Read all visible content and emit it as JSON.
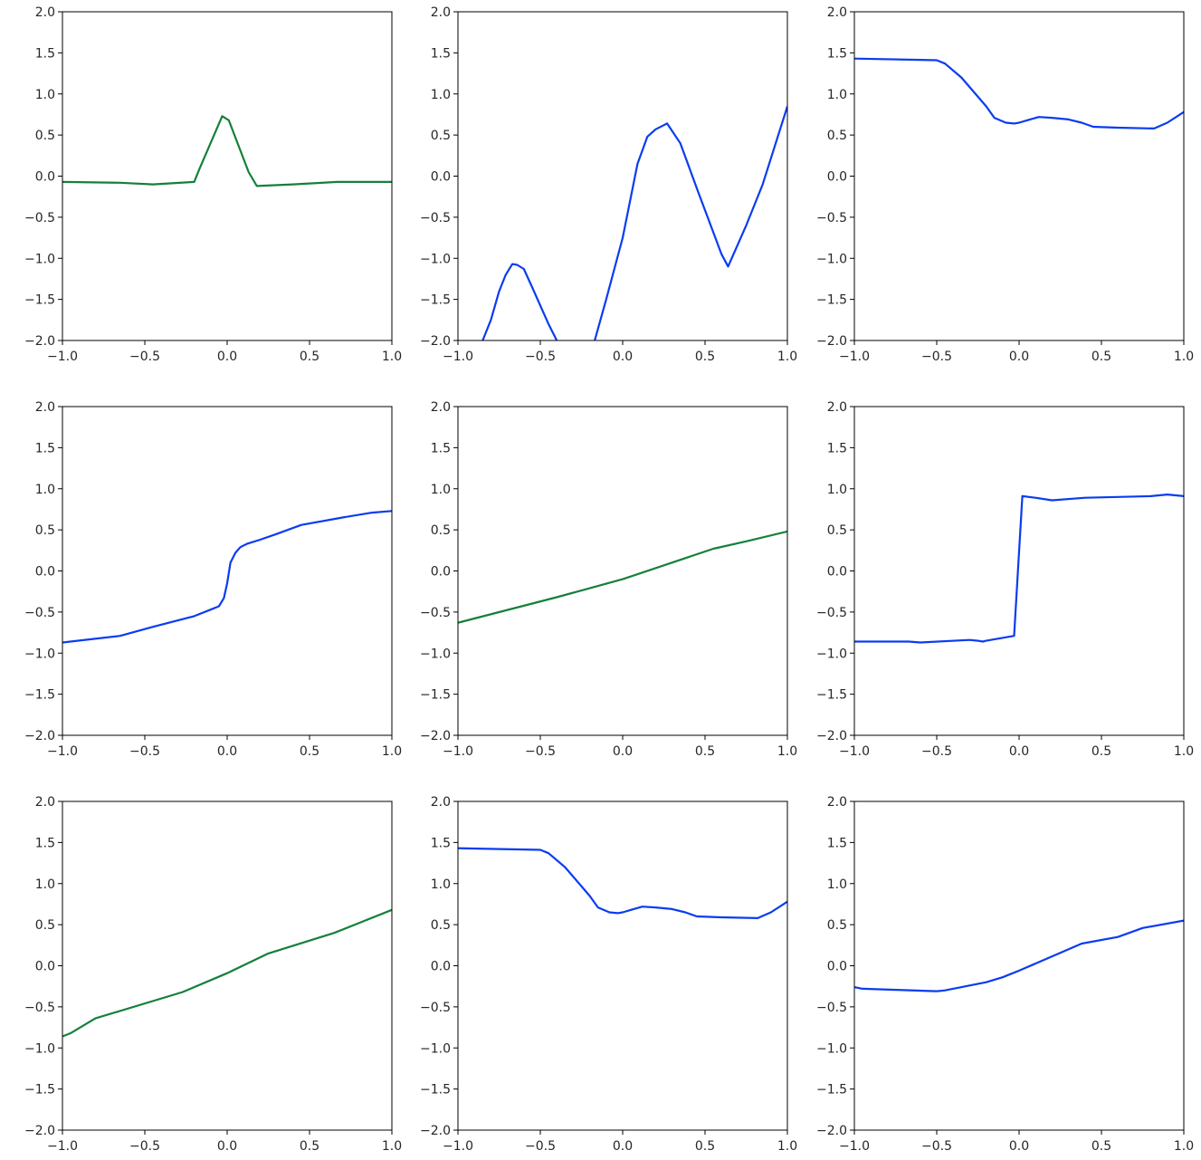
{
  "figure": {
    "grid": {
      "rows": 3,
      "cols": 3
    },
    "series_colors": {
      "green": "#15803a",
      "blue": "#0a3cf0"
    }
  },
  "chart_data": [
    {
      "type": "line",
      "color": "#15803a",
      "xlim": [
        -1.0,
        1.0
      ],
      "ylim": [
        -2.0,
        2.0
      ],
      "grid": false,
      "x_ticks": [
        "−1.0",
        "−0.5",
        "0.0",
        "0.5",
        "1.0"
      ],
      "y_ticks": [
        "2.0",
        "1.5",
        "1.0",
        "0.5",
        "0.0",
        "−0.5",
        "−1.0",
        "−1.5",
        "−2.0"
      ],
      "x": [
        -1.0,
        -0.65,
        -0.45,
        -0.2,
        -0.17,
        -0.03,
        0.01,
        0.13,
        0.18,
        0.4,
        0.67,
        1.0
      ],
      "y": [
        -0.07,
        -0.08,
        -0.1,
        -0.07,
        0.08,
        0.73,
        0.68,
        0.05,
        -0.12,
        -0.1,
        -0.07,
        -0.07
      ]
    },
    {
      "type": "line",
      "color": "#0a3cf0",
      "xlim": [
        -1.0,
        1.0
      ],
      "ylim": [
        -2.0,
        2.0
      ],
      "grid": false,
      "x_ticks": [
        "−1.0",
        "−0.5",
        "0.0",
        "0.5",
        "1.0"
      ],
      "y_ticks": [
        "2.0",
        "1.5",
        "1.0",
        "0.5",
        "0.0",
        "−0.5",
        "−1.0",
        "−1.5",
        "−2.0"
      ],
      "x": [
        -0.85,
        -0.8,
        -0.75,
        -0.71,
        -0.67,
        -0.64,
        -0.6,
        -0.55,
        -0.45,
        -0.4,
        null,
        -0.17,
        -0.1,
        0.0,
        0.09,
        0.15,
        0.2,
        0.25,
        0.27,
        0.35,
        0.46,
        0.6,
        0.64,
        0.75,
        0.85,
        1.0
      ],
      "y": [
        -2.0,
        -1.75,
        -1.4,
        -1.2,
        -1.07,
        -1.08,
        -1.13,
        -1.35,
        -1.8,
        -2.0,
        null,
        -2.0,
        -1.5,
        -0.75,
        0.15,
        0.48,
        0.57,
        0.62,
        0.64,
        0.4,
        -0.2,
        -0.95,
        -1.1,
        -0.6,
        -0.1,
        0.85
      ]
    },
    {
      "type": "line",
      "color": "#0a3cf0",
      "xlim": [
        -1.0,
        1.0
      ],
      "ylim": [
        -2.0,
        2.0
      ],
      "grid": false,
      "x_ticks": [
        "−1.0",
        "−0.5",
        "0.0",
        "0.5",
        "1.0"
      ],
      "y_ticks": [
        "2.0",
        "1.5",
        "1.0",
        "0.5",
        "0.0",
        "−0.5",
        "−1.0",
        "−1.5",
        "−2.0"
      ],
      "x": [
        -1.0,
        -0.5,
        -0.45,
        -0.35,
        -0.2,
        -0.15,
        -0.08,
        -0.03,
        0.0,
        0.05,
        0.12,
        0.2,
        0.3,
        0.38,
        0.45,
        0.6,
        0.82,
        0.9,
        1.0
      ],
      "y": [
        1.43,
        1.41,
        1.37,
        1.2,
        0.85,
        0.71,
        0.65,
        0.64,
        0.65,
        0.68,
        0.72,
        0.71,
        0.69,
        0.65,
        0.6,
        0.59,
        0.58,
        0.65,
        0.78
      ]
    },
    {
      "type": "line",
      "color": "#0a3cf0",
      "xlim": [
        -1.0,
        1.0
      ],
      "ylim": [
        -2.0,
        2.0
      ],
      "grid": false,
      "x_ticks": [
        "−1.0",
        "−0.5",
        "0.0",
        "0.5",
        "1.0"
      ],
      "y_ticks": [
        "2.0",
        "1.5",
        "1.0",
        "0.5",
        "0.0",
        "−0.5",
        "−1.0",
        "−1.5",
        "−2.0"
      ],
      "x": [
        -1.0,
        -0.65,
        -0.45,
        -0.2,
        -0.1,
        -0.05,
        -0.02,
        0.0,
        0.02,
        0.05,
        0.08,
        0.12,
        0.2,
        0.3,
        0.45,
        0.7,
        0.88,
        1.0
      ],
      "y": [
        -0.87,
        -0.79,
        -0.68,
        -0.55,
        -0.47,
        -0.43,
        -0.33,
        -0.15,
        0.1,
        0.22,
        0.29,
        0.33,
        0.38,
        0.45,
        0.56,
        0.65,
        0.71,
        0.73
      ]
    },
    {
      "type": "line",
      "color": "#15803a",
      "xlim": [
        -1.0,
        1.0
      ],
      "ylim": [
        -2.0,
        2.0
      ],
      "grid": false,
      "x_ticks": [
        "−1.0",
        "−0.5",
        "0.0",
        "0.5",
        "1.0"
      ],
      "y_ticks": [
        "2.0",
        "1.5",
        "1.0",
        "0.5",
        "0.0",
        "−0.5",
        "−1.0",
        "−1.5",
        "−2.0"
      ],
      "x": [
        -1.0,
        -0.4,
        0.0,
        0.55,
        0.75,
        1.0
      ],
      "y": [
        -0.63,
        -0.32,
        -0.1,
        0.27,
        0.36,
        0.48
      ]
    },
    {
      "type": "line",
      "color": "#0a3cf0",
      "xlim": [
        -1.0,
        1.0
      ],
      "ylim": [
        -2.0,
        2.0
      ],
      "grid": false,
      "x_ticks": [
        "−1.0",
        "−0.5",
        "0.0",
        "0.5",
        "1.0"
      ],
      "y_ticks": [
        "2.0",
        "1.5",
        "1.0",
        "0.5",
        "0.0",
        "−0.5",
        "−1.0",
        "−1.5",
        "−2.0"
      ],
      "x": [
        -1.0,
        -0.67,
        -0.6,
        -0.3,
        -0.25,
        -0.22,
        -0.2,
        -0.03,
        0.02,
        0.1,
        0.2,
        0.4,
        0.8,
        0.9,
        0.95,
        1.0
      ],
      "y": [
        -0.86,
        -0.86,
        -0.87,
        -0.84,
        -0.85,
        -0.86,
        -0.85,
        -0.79,
        0.91,
        0.89,
        0.86,
        0.89,
        0.91,
        0.93,
        0.92,
        0.91
      ]
    },
    {
      "type": "line",
      "color": "#15803a",
      "xlim": [
        -1.0,
        1.0
      ],
      "ylim": [
        -2.0,
        2.0
      ],
      "grid": false,
      "x_ticks": [
        "−1.0",
        "−0.5",
        "0.0",
        "0.5",
        "1.0"
      ],
      "y_ticks": [
        "2.0",
        "1.5",
        "1.0",
        "0.5",
        "0.0",
        "−0.5",
        "−1.0",
        "−1.5",
        "−2.0"
      ],
      "x": [
        -1.0,
        -0.95,
        -0.8,
        -0.27,
        0.0,
        0.25,
        0.65,
        1.0
      ],
      "y": [
        -0.86,
        -0.82,
        -0.64,
        -0.32,
        -0.09,
        0.15,
        0.4,
        0.68
      ]
    },
    {
      "type": "line",
      "color": "#0a3cf0",
      "xlim": [
        -1.0,
        1.0
      ],
      "ylim": [
        -2.0,
        2.0
      ],
      "grid": false,
      "x_ticks": [
        "−1.0",
        "−0.5",
        "0.0",
        "0.5",
        "1.0"
      ],
      "y_ticks": [
        "2.0",
        "1.5",
        "1.0",
        "0.5",
        "0.0",
        "−0.5",
        "−1.0",
        "−1.5",
        "−2.0"
      ],
      "x": [
        -1.0,
        -0.5,
        -0.45,
        -0.35,
        -0.2,
        -0.15,
        -0.08,
        -0.03,
        0.0,
        0.05,
        0.12,
        0.2,
        0.3,
        0.38,
        0.45,
        0.6,
        0.82,
        0.9,
        1.0
      ],
      "y": [
        1.43,
        1.41,
        1.37,
        1.2,
        0.85,
        0.71,
        0.65,
        0.64,
        0.65,
        0.68,
        0.72,
        0.71,
        0.69,
        0.65,
        0.6,
        0.59,
        0.58,
        0.65,
        0.78
      ]
    },
    {
      "type": "line",
      "color": "#0a3cf0",
      "xlim": [
        -1.0,
        1.0
      ],
      "ylim": [
        -2.0,
        2.0
      ],
      "grid": false,
      "x_ticks": [
        "−1.0",
        "−0.5",
        "0.0",
        "0.5",
        "1.0"
      ],
      "y_ticks": [
        "2.0",
        "1.5",
        "1.0",
        "0.5",
        "0.0",
        "−0.5",
        "−1.0",
        "−1.5",
        "−2.0"
      ],
      "x": [
        -1.0,
        -0.95,
        -0.5,
        -0.45,
        -0.2,
        -0.1,
        0.0,
        0.38,
        0.6,
        0.75,
        1.0
      ],
      "y": [
        -0.26,
        -0.28,
        -0.31,
        -0.3,
        -0.2,
        -0.14,
        -0.06,
        0.27,
        0.35,
        0.46,
        0.55
      ]
    }
  ]
}
